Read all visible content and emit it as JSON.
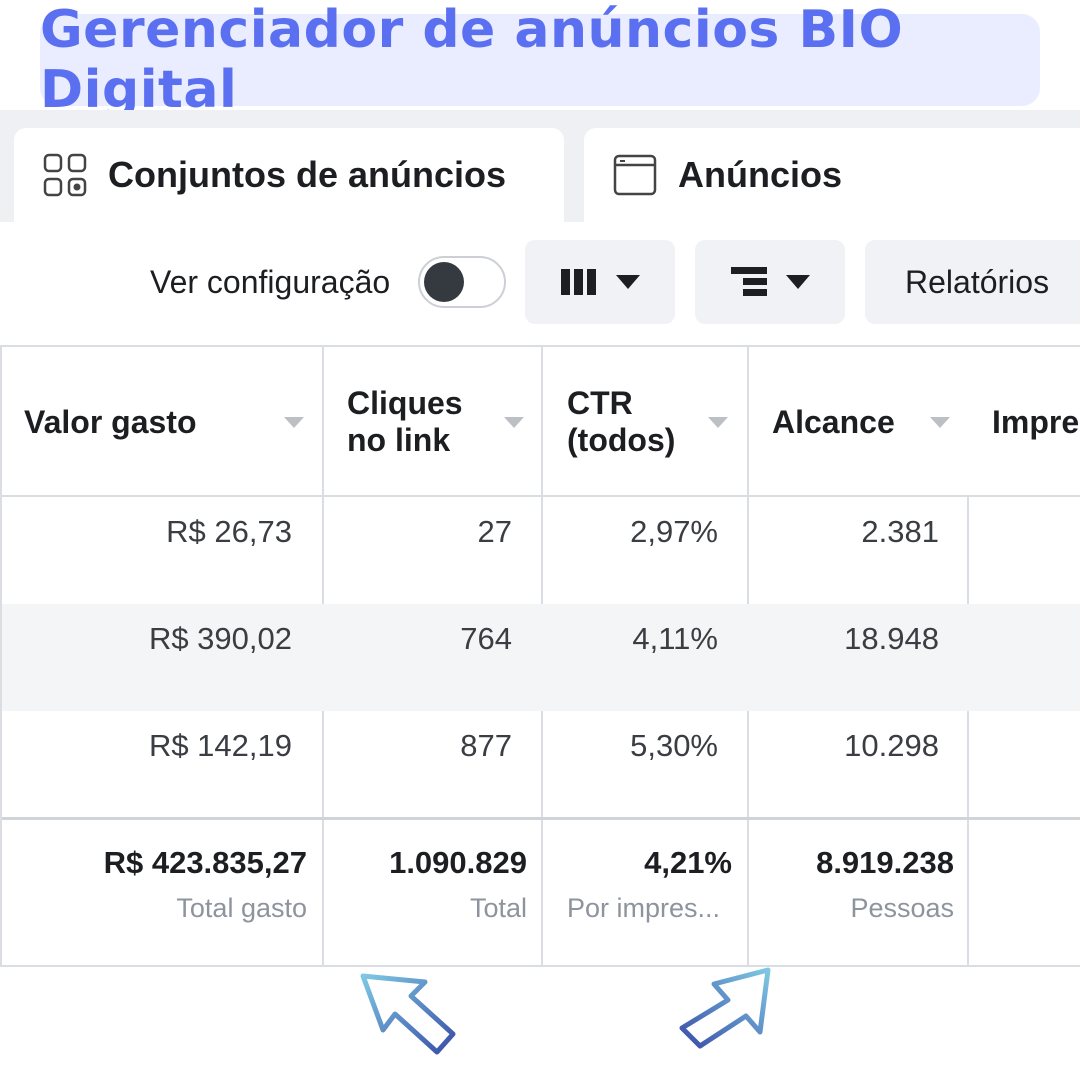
{
  "banner": {
    "title": "Gerenciador de anúncios BIO Digital"
  },
  "tabs": [
    {
      "label": "Conjuntos de anúncios",
      "icon": "grid-icon"
    },
    {
      "label": "Anúncios",
      "icon": "window-icon"
    }
  ],
  "toolbar": {
    "view_settings_label": "Ver configuração",
    "toggle_on": false,
    "columns_icon": "columns-icon",
    "breakdown_icon": "breakdown-icon",
    "reports_label": "Relatórios"
  },
  "table": {
    "headers": {
      "spent": "Valor gasto",
      "clicks_1": "Cliques",
      "clicks_2": "no link",
      "ctr_1": "CTR",
      "ctr_2": "(todos)",
      "reach": "Alcance",
      "impressions": "Impre"
    },
    "rows": [
      {
        "spent": "R$ 26,73",
        "clicks": "27",
        "ctr": "2,97%",
        "reach": "2.381"
      },
      {
        "spent": "R$ 390,02",
        "clicks": "764",
        "ctr": "4,11%",
        "reach": "18.948"
      },
      {
        "spent": "R$ 142,19",
        "clicks": "877",
        "ctr": "5,30%",
        "reach": "10.298"
      }
    ],
    "totals": {
      "spent": "R$ 423.835,27",
      "spent_sub": "Total gasto",
      "clicks": "1.090.829",
      "clicks_sub": "Total",
      "ctr": "4,21%",
      "ctr_sub": "Por impres...",
      "reach": "8.919.238",
      "reach_sub": "Pessoas"
    }
  },
  "colors": {
    "banner_bg": "#e9edff",
    "banner_text": "#5b70f0",
    "arrow_start": "#7ec8e3",
    "arrow_end": "#3a4ea8"
  }
}
